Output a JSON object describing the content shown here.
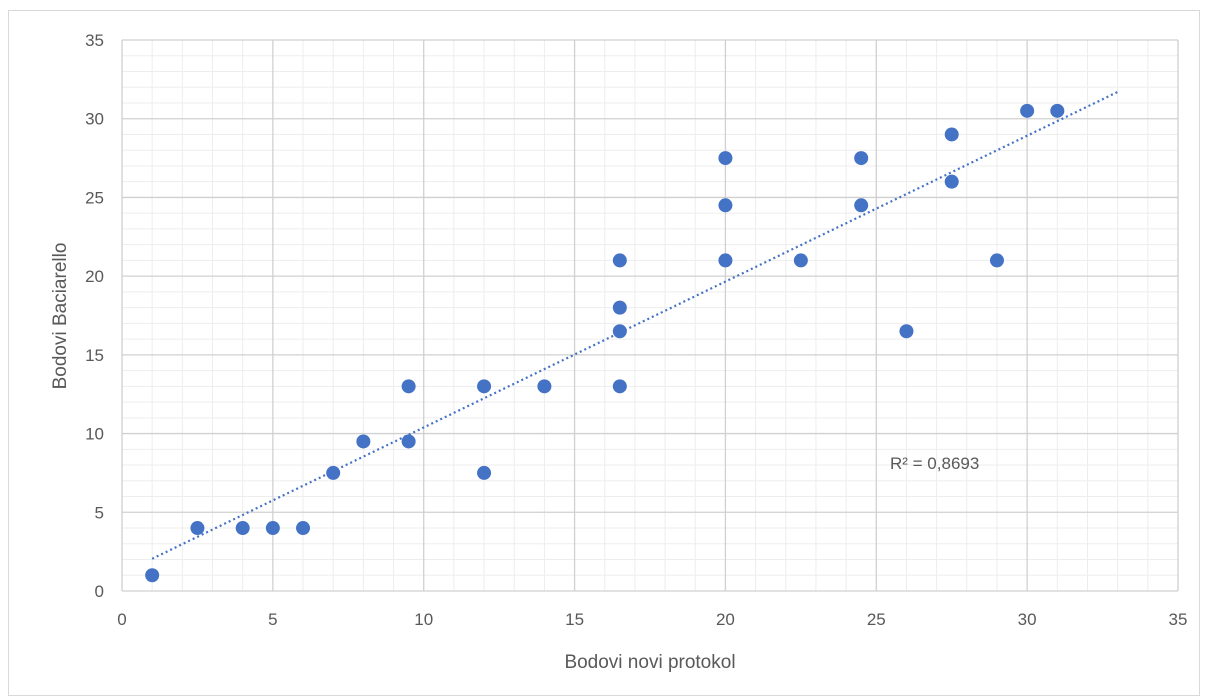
{
  "chart_data": {
    "type": "scatter",
    "title": "",
    "xlabel": "Bodovi novi protokol",
    "ylabel": "Bodovi Baciarello",
    "xlim": [
      0,
      35
    ],
    "ylim": [
      0,
      35
    ],
    "x_ticks": [
      "0",
      "5",
      "10",
      "15",
      "20",
      "25",
      "30",
      "35"
    ],
    "y_ticks": [
      "0",
      "5",
      "10",
      "15",
      "20",
      "25",
      "30",
      "35"
    ],
    "grid": true,
    "minor_grid": true,
    "legend": "none",
    "series": [
      {
        "color": "#4472c4",
        "points": [
          [
            1,
            1
          ],
          [
            2.5,
            4
          ],
          [
            4,
            4
          ],
          [
            5,
            4
          ],
          [
            6,
            4
          ],
          [
            7,
            7.5
          ],
          [
            8,
            9.5
          ],
          [
            9.5,
            9.5
          ],
          [
            9.5,
            13
          ],
          [
            12,
            13
          ],
          [
            12,
            7.5
          ],
          [
            14,
            13
          ],
          [
            16.5,
            21
          ],
          [
            16.5,
            18
          ],
          [
            16.5,
            16.5
          ],
          [
            16.5,
            13
          ],
          [
            20,
            27.5
          ],
          [
            20,
            24.5
          ],
          [
            20,
            21
          ],
          [
            22.5,
            21
          ],
          [
            24.5,
            27.5
          ],
          [
            24.5,
            24.5
          ],
          [
            26,
            16.5
          ],
          [
            27.5,
            29
          ],
          [
            27.5,
            26
          ],
          [
            29,
            21
          ],
          [
            30,
            30.5
          ],
          [
            31,
            30.5
          ]
        ]
      }
    ],
    "trendline": {
      "type": "linear",
      "style": "dotted",
      "color": "#4472c4",
      "x_range": [
        1,
        33
      ],
      "y_range": [
        2.05,
        31.7
      ]
    },
    "annotation": "R² = 0,8693"
  }
}
